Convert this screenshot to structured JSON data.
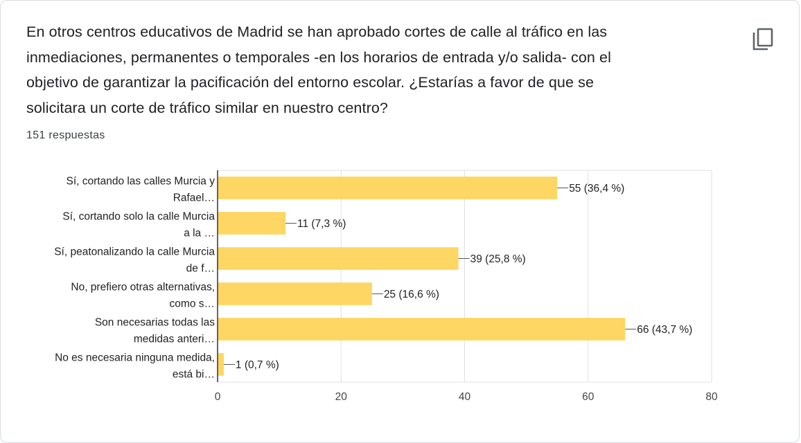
{
  "question": {
    "lines": [
      "En otros centros educativos de Madrid se han aprobado cortes de calle al tráfico en las",
      "inmediaciones, permanentes o temporales -en los horarios de entrada y/o salida- con el",
      "objetivo de garantizar la pacificación del entorno escolar. ¿Estarías a favor de que se",
      "solicitara un corte de tráfico similar en nuestro centro?"
    ]
  },
  "responses_count": "151 respuestas",
  "copy_icon": "copy-icon",
  "colors": {
    "bar": "#fdd663",
    "grid": "#e0e0e0",
    "axis": "#333333"
  },
  "chart_data": {
    "type": "bar",
    "orientation": "horizontal",
    "categories": [
      [
        "Sí, cortando las calles Murcia y",
        "Rafael…"
      ],
      [
        "Sí, cortando solo la calle Murcia",
        "a la …"
      ],
      [
        "Sí, peatonalizando la calle Murcia",
        "de f…"
      ],
      [
        "No, prefiero otras alternativas,",
        "como s…"
      ],
      [
        "Son necesarias todas las",
        "medidas anteri…"
      ],
      [
        "No es necesaria ninguna medida,",
        "está bi…"
      ]
    ],
    "values": [
      55,
      11,
      39,
      25,
      66,
      1
    ],
    "value_labels": [
      "55 (36,4 %)",
      "11 (7,3 %)",
      "39 (25,8 %)",
      "25 (16,6 %)",
      "66 (43,7 %)",
      "1 (0,7 %)"
    ],
    "xlim": [
      0,
      80
    ],
    "xticks": [
      0,
      20,
      40,
      60,
      80
    ],
    "grid": true
  }
}
